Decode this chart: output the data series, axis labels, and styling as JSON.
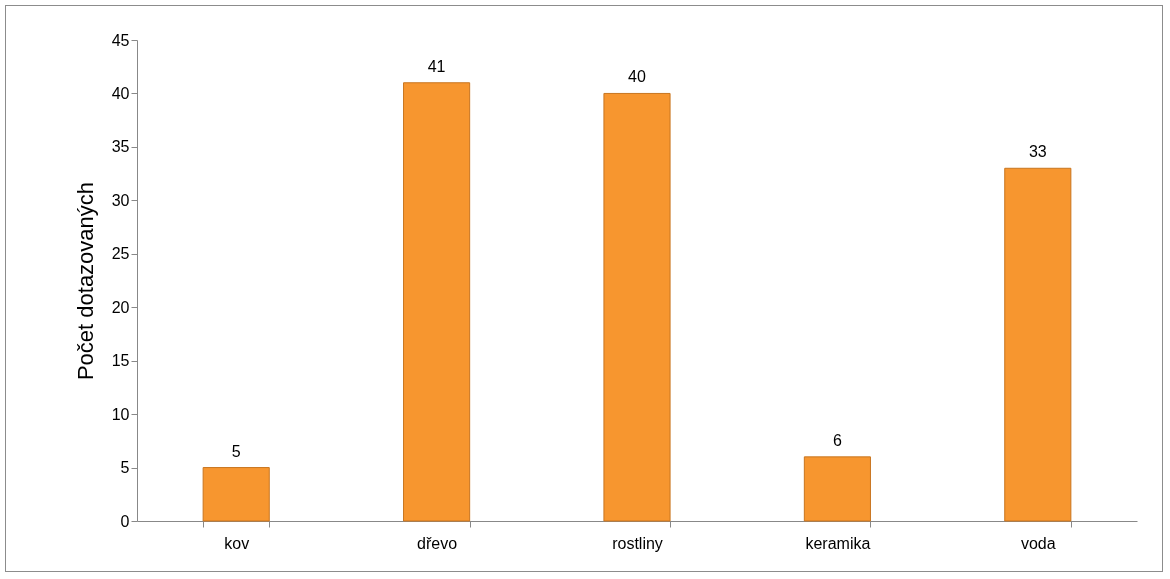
{
  "chart_data": {
    "type": "bar",
    "ylabel": "Počet dotazovaných",
    "categories": [
      "kov",
      "dřevo",
      "rostliny",
      "keramika",
      "voda"
    ],
    "values": [
      5,
      41,
      40,
      6,
      33
    ],
    "color": "#f7962f",
    "ylim": [
      0,
      45
    ],
    "yticks": [
      0,
      5,
      10,
      15,
      20,
      25,
      30,
      35,
      40,
      45
    ],
    "grid": false,
    "data_labels": true
  }
}
